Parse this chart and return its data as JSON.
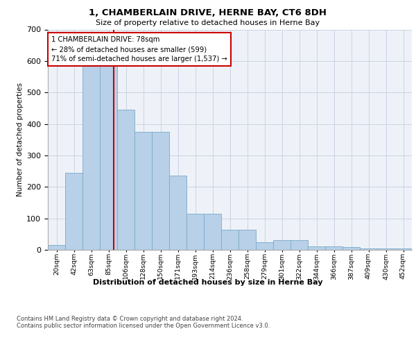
{
  "title": "1, CHAMBERLAIN DRIVE, HERNE BAY, CT6 8DH",
  "subtitle": "Size of property relative to detached houses in Herne Bay",
  "xlabel": "Distribution of detached houses by size in Herne Bay",
  "ylabel": "Number of detached properties",
  "categories": [
    "20sqm",
    "42sqm",
    "63sqm",
    "85sqm",
    "106sqm",
    "128sqm",
    "150sqm",
    "171sqm",
    "193sqm",
    "214sqm",
    "236sqm",
    "258sqm",
    "279sqm",
    "301sqm",
    "322sqm",
    "344sqm",
    "366sqm",
    "387sqm",
    "409sqm",
    "430sqm",
    "452sqm"
  ],
  "values": [
    15,
    245,
    585,
    585,
    445,
    375,
    375,
    235,
    115,
    115,
    65,
    65,
    25,
    30,
    30,
    12,
    10,
    8,
    5,
    5,
    5
  ],
  "bar_color": "#b8d0e8",
  "bar_edge_color": "#7aaac8",
  "annotation_text": "1 CHAMBERLAIN DRIVE: 78sqm\n← 28% of detached houses are smaller (599)\n71% of semi-detached houses are larger (1,537) →",
  "annotation_box_color": "#ffffff",
  "annotation_box_edge": "#cc0000",
  "vline_color": "#cc0000",
  "grid_color": "#c8d4e4",
  "background_color": "#eef2f8",
  "ylim": [
    0,
    700
  ],
  "yticks": [
    0,
    100,
    200,
    300,
    400,
    500,
    600,
    700
  ],
  "vline_x": 3.3,
  "footer": "Contains HM Land Registry data © Crown copyright and database right 2024.\nContains public sector information licensed under the Open Government Licence v3.0."
}
